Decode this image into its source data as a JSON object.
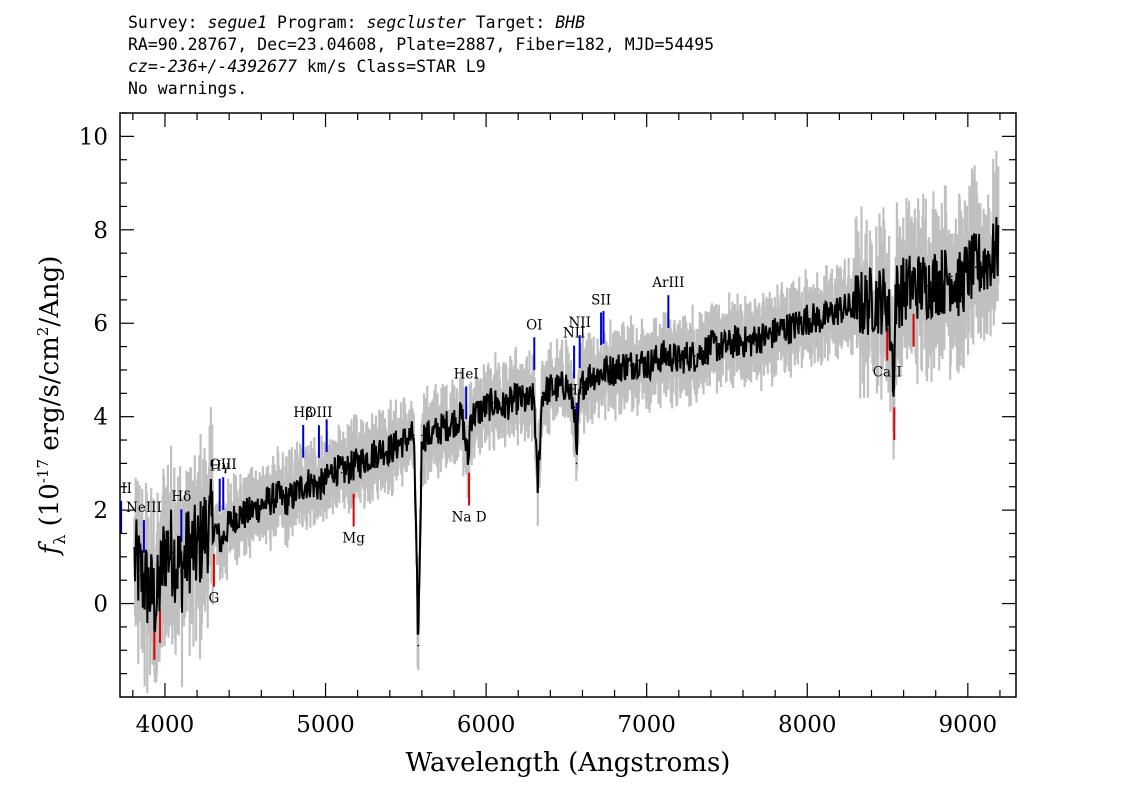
{
  "header": {
    "survey_label": "Survey:",
    "survey": "segue1",
    "program_label": "Program:",
    "program": "segcluster",
    "target_label": "Target:",
    "target": "BHB",
    "line2": "RA=90.28767, Dec=23.04608, Plate=2887, Fiber=182, MJD=54495",
    "cz_label": "cz=",
    "cz_value": "-236+/-4392677",
    "cz_rest": " km/s Class=STAR L9",
    "warnings": "No warnings."
  },
  "chart_data": {
    "type": "line",
    "xlabel": "Wavelength (Angstroms)",
    "ylabel": "f_λ (10^-17 erg/s/cm^2/Ang)",
    "xlim": [
      3720,
      9300
    ],
    "ylim": [
      -2.0,
      10.5
    ],
    "x_ticks": [
      4000,
      5000,
      6000,
      7000,
      8000,
      9000
    ],
    "y_ticks": [
      0,
      2,
      4,
      6,
      8,
      10
    ],
    "series": [
      {
        "color": "#000000",
        "x": [
          3810,
          3850,
          3900,
          3950,
          4000,
          4050,
          4100,
          4150,
          4200,
          4250,
          4300,
          4350,
          4400,
          4450,
          4500,
          4550,
          4600,
          4650,
          4700,
          4750,
          4800,
          4850,
          4900,
          4950,
          5000,
          5050,
          5100,
          5150,
          5200,
          5250,
          5300,
          5350,
          5400,
          5450,
          5500,
          5550,
          5577,
          5600,
          5650,
          5700,
          5750,
          5800,
          5850,
          5890,
          5900,
          5950,
          6000,
          6050,
          6100,
          6150,
          6200,
          6250,
          6300,
          6320,
          6350,
          6400,
          6450,
          6500,
          6550,
          6563,
          6580,
          6600,
          6650,
          6700,
          6750,
          6800,
          6850,
          6900,
          6950,
          7000,
          7050,
          7100,
          7150,
          7200,
          7250,
          7300,
          7350,
          7400,
          7450,
          7500,
          7550,
          7600,
          7650,
          7700,
          7750,
          7800,
          7850,
          7900,
          7950,
          8000,
          8050,
          8100,
          8150,
          8200,
          8250,
          8300,
          8350,
          8400,
          8450,
          8500,
          8542,
          8550,
          8600,
          8650,
          8700,
          8750,
          8800,
          8850,
          8900,
          8950,
          9000,
          9050,
          9100,
          9150,
          9190
        ],
        "y": [
          0.9,
          0.6,
          0.3,
          0.0,
          1.2,
          1.1,
          0.7,
          1.2,
          1.1,
          1.6,
          1.7,
          1.3,
          1.7,
          1.9,
          1.9,
          2.0,
          2.1,
          2.2,
          2.3,
          2.2,
          2.3,
          2.5,
          2.6,
          2.5,
          2.6,
          2.9,
          2.8,
          2.9,
          3.0,
          3.1,
          3.2,
          3.3,
          3.3,
          3.4,
          3.5,
          3.6,
          -0.9,
          3.6,
          3.6,
          3.7,
          3.8,
          3.9,
          4.0,
          3.0,
          4.0,
          4.1,
          4.2,
          4.3,
          4.2,
          4.3,
          4.4,
          4.3,
          4.4,
          2.4,
          4.5,
          4.6,
          4.6,
          4.7,
          4.2,
          3.0,
          4.4,
          4.7,
          4.9,
          4.9,
          5.0,
          5.0,
          5.1,
          5.1,
          5.2,
          5.1,
          5.2,
          5.3,
          5.3,
          5.2,
          5.3,
          5.3,
          5.4,
          5.5,
          5.5,
          5.5,
          5.6,
          5.6,
          5.6,
          5.7,
          5.7,
          5.8,
          5.9,
          5.9,
          6.0,
          6.1,
          6.1,
          6.1,
          6.2,
          6.3,
          6.3,
          6.4,
          6.4,
          6.5,
          6.5,
          6.5,
          4.8,
          6.6,
          6.7,
          6.8,
          6.8,
          6.8,
          6.9,
          6.9,
          7.0,
          6.8,
          7.1,
          7.2,
          7.3,
          7.4,
          7.6
        ]
      }
    ],
    "lines": [
      {
        "label": "OII",
        "wave": 3727,
        "color": "blue",
        "pos": "upper"
      },
      {
        "label": "NeIII",
        "wave": 3869,
        "color": "blue",
        "pos": "upper"
      },
      {
        "label": "Hδ",
        "wave": 4102,
        "color": "blue",
        "pos": "upper"
      },
      {
        "label": "Hγ",
        "wave": 4341,
        "color": "blue",
        "pos": "upper"
      },
      {
        "label": "OIII",
        "wave": 4363,
        "color": "blue",
        "pos": "upper"
      },
      {
        "label": "Hβ",
        "wave": 4861,
        "color": "blue",
        "pos": "upper"
      },
      {
        "label": "OIII",
        "wave": 4959,
        "color": "blue",
        "pos": "upper"
      },
      {
        "label": "",
        "wave": 5007,
        "color": "blue",
        "pos": "upper"
      },
      {
        "label": "HeI",
        "wave": 5876,
        "color": "blue",
        "pos": "upper"
      },
      {
        "label": "OI",
        "wave": 6300,
        "color": "blue",
        "pos": "upper"
      },
      {
        "label": "NII",
        "wave": 6548,
        "color": "blue",
        "pos": "upper"
      },
      {
        "label": "Hα",
        "wave": 6563,
        "color": "blue",
        "pos": "upper"
      },
      {
        "label": "NII",
        "wave": 6583,
        "color": "blue",
        "pos": "upper"
      },
      {
        "label": "SII",
        "wave": 6716,
        "color": "blue",
        "pos": "upper"
      },
      {
        "label": "",
        "wave": 6731,
        "color": "blue",
        "pos": "upper"
      },
      {
        "label": "ArIII",
        "wave": 7135,
        "color": "blue",
        "pos": "upper"
      },
      {
        "label": "",
        "wave": 3934,
        "color": "red",
        "pos": "lower"
      },
      {
        "label": "",
        "wave": 3969,
        "color": "red",
        "pos": "lower"
      },
      {
        "label": "G",
        "wave": 4305,
        "color": "red",
        "pos": "lower"
      },
      {
        "label": "Mg",
        "wave": 5175,
        "color": "red",
        "pos": "lower"
      },
      {
        "label": "Na D",
        "wave": 5894,
        "color": "red",
        "pos": "lower"
      },
      {
        "label": "CaII",
        "wave": 8498,
        "color": "red",
        "pos": "lower"
      },
      {
        "label": "",
        "wave": 8542,
        "color": "red",
        "pos": "lower"
      },
      {
        "label": "",
        "wave": 8662,
        "color": "red",
        "pos": "lower"
      }
    ],
    "colors": {
      "flux": "#000000",
      "error_band": "#c0c0c0",
      "emission": "#0000cc",
      "absorption": "#dd0000"
    }
  }
}
